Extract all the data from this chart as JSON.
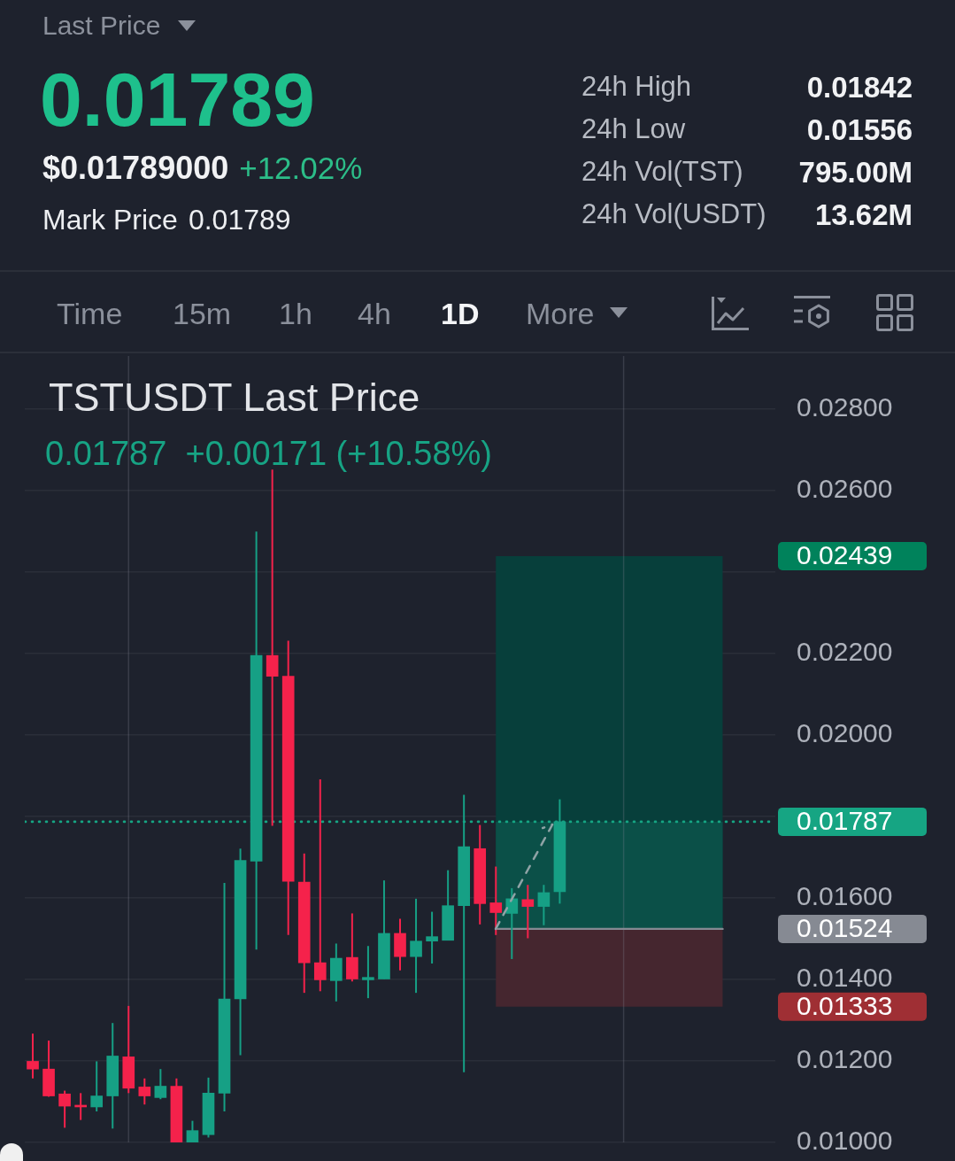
{
  "chart_data": {
    "type": "candlestick",
    "title": "TSTUSDT Last Price",
    "subtitle": "0.01787  +0.00171 (+10.58%)",
    "annotations": [
      "Last Price",
      "0.01789",
      "$0.01789000",
      "+12.02%",
      "Mark Price",
      "0.01789",
      "24h High",
      "0.01842",
      "24h Low",
      "0.01556",
      "24h Vol(TST)",
      "795.00M",
      "24h Vol(USDT)",
      "13.62M",
      "Time",
      "15m",
      "1h",
      "4h",
      "1D",
      "More"
    ],
    "categories": [
      null,
      null,
      null,
      null,
      null,
      null,
      null,
      null,
      null,
      null,
      null,
      null,
      null,
      null,
      null,
      null,
      null,
      null,
      null,
      null,
      null,
      null,
      null,
      null,
      null,
      null,
      null,
      null,
      null,
      null,
      null,
      null,
      null,
      null,
      null,
      null,
      null,
      null,
      null,
      null,
      null,
      null,
      null,
      null,
      null,
      null,
      null
    ],
    "ohlc": [
      [
        0.01199,
        0.01267,
        0.01157,
        0.0118
      ],
      [
        0.0118,
        0.0125,
        0.01112,
        0.01114
      ],
      [
        0.01119,
        0.01127,
        0.01036,
        0.01089
      ],
      [
        0.01091,
        0.01121,
        0.01055,
        0.01087
      ],
      [
        0.01087,
        0.01199,
        0.01076,
        0.01114
      ],
      [
        0.01114,
        0.01293,
        0.01034,
        0.01212
      ],
      [
        0.0121,
        0.01335,
        0.01121,
        0.01133
      ],
      [
        0.01136,
        0.01157,
        0.01093,
        0.01114
      ],
      [
        0.0111,
        0.0118,
        0.01106,
        0.01138
      ],
      [
        0.01138,
        0.01157,
        0.01,
        0.01
      ],
      [
        0.01,
        0.01053,
        0.01,
        0.01029
      ],
      [
        0.01019,
        0.01159,
        0.01012,
        0.01121
      ],
      [
        0.01121,
        0.01637,
        0.01076,
        0.01352
      ],
      [
        0.01352,
        0.01721,
        0.01214,
        0.01692
      ],
      [
        0.0169,
        0.02499,
        0.01473,
        0.02195
      ],
      [
        0.02195,
        0.02651,
        0.01777,
        0.02144
      ],
      [
        0.02144,
        0.02231,
        0.01509,
        0.01641
      ],
      [
        0.01639,
        0.01709,
        0.01367,
        0.01441
      ],
      [
        0.01441,
        0.01891,
        0.01371,
        0.01399
      ],
      [
        0.01397,
        0.01488,
        0.01346,
        0.01452
      ],
      [
        0.01454,
        0.01562,
        0.01395,
        0.01401
      ],
      [
        0.01399,
        0.01482,
        0.01354,
        0.01405
      ],
      [
        0.01401,
        0.01643,
        0.01401,
        0.01513
      ],
      [
        0.01513,
        0.01549,
        0.01422,
        0.01456
      ],
      [
        0.01456,
        0.01598,
        0.01367,
        0.01494
      ],
      [
        0.01494,
        0.01566,
        0.01439,
        0.01505
      ],
      [
        0.01496,
        0.01668,
        0.01496,
        0.01581
      ],
      [
        0.01581,
        0.01853,
        0.01172,
        0.01726
      ],
      [
        0.01721,
        0.01779,
        0.01535,
        0.01586
      ],
      [
        0.01588,
        0.01677,
        0.01509,
        0.01564
      ],
      [
        0.01562,
        0.01624,
        0.0145,
        0.01598
      ],
      [
        0.01596,
        0.01632,
        0.01501,
        0.01579
      ],
      [
        0.01579,
        0.01632,
        0.01533,
        0.01613
      ],
      [
        0.01615,
        0.01842,
        0.01586,
        0.01787
      ],
      null,
      null,
      null,
      null,
      null,
      null,
      null,
      null,
      null,
      null,
      null,
      null,
      null
    ],
    "colors": [
      "#f5224b",
      "#f5224b",
      "#f5224b",
      "#f5224b",
      "#16a085",
      "#16a085",
      "#f5224b",
      "#f5224b",
      "#16a085",
      "#f5224b",
      "#16a085",
      "#16a085",
      "#16a085",
      "#16a085",
      "#16a085",
      "#f5224b",
      "#f5224b",
      "#f5224b",
      "#f5224b",
      "#16a085",
      "#f5224b",
      "#16a085",
      "#16a085",
      "#f5224b",
      "#16a085",
      "#16a085",
      "#16a085",
      "#16a085",
      "#f5224b",
      "#f5224b",
      "#16a085",
      "#f5224b",
      "#16a085",
      "#16a085",
      null,
      null,
      null,
      null,
      null,
      null,
      null,
      null,
      null,
      null,
      null,
      null,
      null
    ],
    "ylim": [
      0.01,
      0.0293
    ],
    "yticks": [
      {
        "value": 0.01,
        "label": "0.01000"
      },
      {
        "value": 0.012,
        "label": "0.01200"
      },
      {
        "value": 0.014,
        "label": "0.01400"
      },
      {
        "value": 0.016,
        "label": "0.01600"
      },
      {
        "value": 0.018,
        "label": null
      },
      {
        "value": 0.02,
        "label": "0.02000"
      },
      {
        "value": 0.022,
        "label": "0.02200"
      },
      {
        "value": 0.024,
        "label": null
      },
      {
        "value": 0.026,
        "label": "0.02600"
      },
      {
        "value": 0.028,
        "label": "0.02800"
      }
    ],
    "grid": "y",
    "tick_labels": "y",
    "ref_lines": [
      {
        "axis": "y",
        "value": 0.01787,
        "label": "0.01787",
        "color": "#16a583",
        "line_style": "dotted"
      },
      {
        "axis": "y",
        "value": 0.01524,
        "label": "0.01524",
        "color": "#868a93",
        "line_style": "solid"
      }
    ],
    "bands": [
      {
        "axis": "y",
        "from": 0.01524,
        "to": 0.02439,
        "label": "0.02439",
        "color": "#073f3b"
      },
      {
        "axis": "y",
        "from": 0.01524,
        "to": 0.01787,
        "color": "#0b5048"
      },
      {
        "axis": "y",
        "from": 0.01524,
        "to": 0.01333,
        "label": "0.01333",
        "color": "#45262f"
      }
    ]
  }
}
